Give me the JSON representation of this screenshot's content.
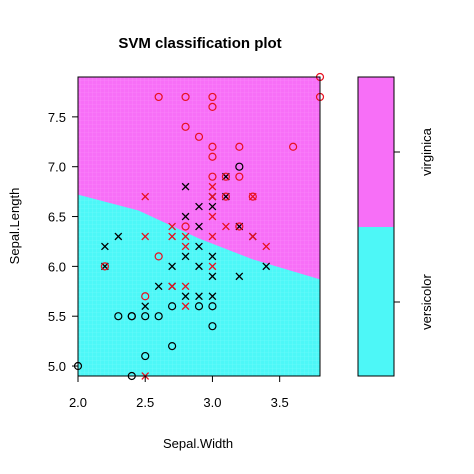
{
  "chart_data": {
    "type": "scatter",
    "title": "SVM classification plot",
    "xlabel": "Sepal.Width",
    "ylabel": "Sepal.Length",
    "xlim": [
      2.0,
      3.8
    ],
    "ylim": [
      4.9,
      7.9
    ],
    "x_ticks": [
      "2.0",
      "2.5",
      "3.0",
      "3.5"
    ],
    "y_ticks": [
      "5.0",
      "5.5",
      "6.0",
      "6.5",
      "7.0",
      "7.5"
    ],
    "classes": [
      "versicolor",
      "virginica"
    ],
    "region_colors": {
      "versicolor": "#4DF7F7",
      "virginica": "#F76FF7"
    },
    "point_colors": {
      "versicolor": "#000000",
      "virginica": "#E8101F"
    },
    "decision_boundary": [
      {
        "x": 2.0,
        "y": 6.72
      },
      {
        "x": 2.45,
        "y": 6.56
      },
      {
        "x": 2.9,
        "y": 6.28
      },
      {
        "x": 3.3,
        "y": 6.07
      },
      {
        "x": 3.8,
        "y": 5.87
      }
    ],
    "points": [
      {
        "x": 2.0,
        "y": 5.0,
        "class": "versicolor",
        "sv": false
      },
      {
        "x": 2.2,
        "y": 6.0,
        "class": "versicolor",
        "sv": true
      },
      {
        "x": 2.2,
        "y": 6.2,
        "class": "versicolor",
        "sv": true
      },
      {
        "x": 2.3,
        "y": 5.5,
        "class": "versicolor",
        "sv": false
      },
      {
        "x": 2.3,
        "y": 6.3,
        "class": "versicolor",
        "sv": true
      },
      {
        "x": 2.4,
        "y": 4.9,
        "class": "versicolor",
        "sv": false
      },
      {
        "x": 2.4,
        "y": 5.5,
        "class": "versicolor",
        "sv": false
      },
      {
        "x": 2.4,
        "y": 5.5,
        "class": "versicolor",
        "sv": false
      },
      {
        "x": 2.5,
        "y": 5.1,
        "class": "versicolor",
        "sv": false
      },
      {
        "x": 2.5,
        "y": 5.5,
        "class": "versicolor",
        "sv": false
      },
      {
        "x": 2.5,
        "y": 5.6,
        "class": "versicolor",
        "sv": true
      },
      {
        "x": 2.6,
        "y": 5.5,
        "class": "versicolor",
        "sv": false
      },
      {
        "x": 2.6,
        "y": 5.8,
        "class": "versicolor",
        "sv": true
      },
      {
        "x": 2.7,
        "y": 5.2,
        "class": "versicolor",
        "sv": false
      },
      {
        "x": 2.7,
        "y": 5.6,
        "class": "versicolor",
        "sv": false
      },
      {
        "x": 2.7,
        "y": 5.8,
        "class": "versicolor",
        "sv": true
      },
      {
        "x": 2.7,
        "y": 6.0,
        "class": "versicolor",
        "sv": true
      },
      {
        "x": 2.8,
        "y": 5.7,
        "class": "versicolor",
        "sv": true
      },
      {
        "x": 2.8,
        "y": 6.1,
        "class": "versicolor",
        "sv": true
      },
      {
        "x": 2.8,
        "y": 6.5,
        "class": "versicolor",
        "sv": true
      },
      {
        "x": 2.8,
        "y": 6.8,
        "class": "versicolor",
        "sv": true
      },
      {
        "x": 2.9,
        "y": 5.6,
        "class": "versicolor",
        "sv": false
      },
      {
        "x": 2.9,
        "y": 5.7,
        "class": "versicolor",
        "sv": true
      },
      {
        "x": 2.9,
        "y": 6.0,
        "class": "versicolor",
        "sv": true
      },
      {
        "x": 2.9,
        "y": 6.2,
        "class": "versicolor",
        "sv": true
      },
      {
        "x": 2.9,
        "y": 6.4,
        "class": "versicolor",
        "sv": true
      },
      {
        "x": 2.9,
        "y": 6.6,
        "class": "versicolor",
        "sv": true
      },
      {
        "x": 3.0,
        "y": 5.4,
        "class": "versicolor",
        "sv": false
      },
      {
        "x": 3.0,
        "y": 5.6,
        "class": "versicolor",
        "sv": false
      },
      {
        "x": 3.0,
        "y": 5.7,
        "class": "versicolor",
        "sv": true
      },
      {
        "x": 3.0,
        "y": 5.9,
        "class": "versicolor",
        "sv": true
      },
      {
        "x": 3.0,
        "y": 6.1,
        "class": "versicolor",
        "sv": true
      },
      {
        "x": 3.0,
        "y": 6.6,
        "class": "versicolor",
        "sv": true
      },
      {
        "x": 3.0,
        "y": 6.7,
        "class": "versicolor",
        "sv": true
      },
      {
        "x": 3.1,
        "y": 6.7,
        "class": "versicolor",
        "sv": true
      },
      {
        "x": 3.1,
        "y": 6.9,
        "class": "versicolor",
        "sv": true
      },
      {
        "x": 3.2,
        "y": 5.9,
        "class": "versicolor",
        "sv": true
      },
      {
        "x": 3.2,
        "y": 6.4,
        "class": "versicolor",
        "sv": true
      },
      {
        "x": 3.2,
        "y": 7.0,
        "class": "versicolor",
        "sv": false
      },
      {
        "x": 3.3,
        "y": 6.3,
        "class": "versicolor",
        "sv": true
      },
      {
        "x": 3.4,
        "y": 6.0,
        "class": "versicolor",
        "sv": true
      },
      {
        "x": 2.2,
        "y": 6.0,
        "class": "virginica",
        "sv": false
      },
      {
        "x": 2.5,
        "y": 4.9,
        "class": "virginica",
        "sv": true
      },
      {
        "x": 2.5,
        "y": 5.7,
        "class": "virginica",
        "sv": false
      },
      {
        "x": 2.5,
        "y": 6.3,
        "class": "virginica",
        "sv": true
      },
      {
        "x": 2.5,
        "y": 6.7,
        "class": "virginica",
        "sv": true
      },
      {
        "x": 2.6,
        "y": 6.1,
        "class": "virginica",
        "sv": false
      },
      {
        "x": 2.6,
        "y": 7.7,
        "class": "virginica",
        "sv": false
      },
      {
        "x": 2.7,
        "y": 5.8,
        "class": "virginica",
        "sv": true
      },
      {
        "x": 2.7,
        "y": 6.3,
        "class": "virginica",
        "sv": true
      },
      {
        "x": 2.7,
        "y": 6.4,
        "class": "virginica",
        "sv": true
      },
      {
        "x": 2.8,
        "y": 5.6,
        "class": "virginica",
        "sv": true
      },
      {
        "x": 2.8,
        "y": 5.8,
        "class": "virginica",
        "sv": true
      },
      {
        "x": 2.8,
        "y": 6.2,
        "class": "virginica",
        "sv": true
      },
      {
        "x": 2.8,
        "y": 6.3,
        "class": "virginica",
        "sv": true
      },
      {
        "x": 2.8,
        "y": 6.4,
        "class": "virginica",
        "sv": false
      },
      {
        "x": 2.8,
        "y": 7.4,
        "class": "virginica",
        "sv": false
      },
      {
        "x": 2.8,
        "y": 7.7,
        "class": "virginica",
        "sv": false
      },
      {
        "x": 2.9,
        "y": 7.3,
        "class": "virginica",
        "sv": false
      },
      {
        "x": 3.0,
        "y": 6.0,
        "class": "virginica",
        "sv": true
      },
      {
        "x": 3.0,
        "y": 6.3,
        "class": "virginica",
        "sv": true
      },
      {
        "x": 3.0,
        "y": 6.5,
        "class": "virginica",
        "sv": true
      },
      {
        "x": 3.0,
        "y": 6.7,
        "class": "virginica",
        "sv": true
      },
      {
        "x": 3.0,
        "y": 6.8,
        "class": "virginica",
        "sv": true
      },
      {
        "x": 3.0,
        "y": 6.9,
        "class": "virginica",
        "sv": false
      },
      {
        "x": 3.0,
        "y": 7.1,
        "class": "virginica",
        "sv": false
      },
      {
        "x": 3.0,
        "y": 7.2,
        "class": "virginica",
        "sv": false
      },
      {
        "x": 3.0,
        "y": 7.6,
        "class": "virginica",
        "sv": false
      },
      {
        "x": 3.0,
        "y": 7.7,
        "class": "virginica",
        "sv": false
      },
      {
        "x": 3.1,
        "y": 6.4,
        "class": "virginica",
        "sv": true
      },
      {
        "x": 3.1,
        "y": 6.7,
        "class": "virginica",
        "sv": false
      },
      {
        "x": 3.1,
        "y": 6.9,
        "class": "virginica",
        "sv": false
      },
      {
        "x": 3.2,
        "y": 6.4,
        "class": "virginica",
        "sv": false
      },
      {
        "x": 3.2,
        "y": 6.9,
        "class": "virginica",
        "sv": false
      },
      {
        "x": 3.2,
        "y": 7.2,
        "class": "virginica",
        "sv": false
      },
      {
        "x": 3.3,
        "y": 6.3,
        "class": "virginica",
        "sv": true
      },
      {
        "x": 3.3,
        "y": 6.7,
        "class": "virginica",
        "sv": false
      },
      {
        "x": 3.3,
        "y": 6.7,
        "class": "virginica",
        "sv": true
      },
      {
        "x": 3.4,
        "y": 6.2,
        "class": "virginica",
        "sv": true
      },
      {
        "x": 3.6,
        "y": 7.2,
        "class": "virginica",
        "sv": false
      },
      {
        "x": 3.8,
        "y": 7.7,
        "class": "virginica",
        "sv": false
      },
      {
        "x": 3.8,
        "y": 7.9,
        "class": "virginica",
        "sv": false
      }
    ]
  }
}
